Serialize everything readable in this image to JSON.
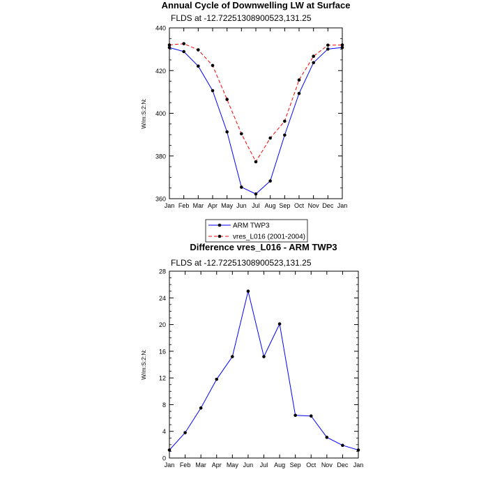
{
  "chart_data": [
    {
      "type": "line",
      "title": "Annual Cycle of Downwelling LW at Surface",
      "subtitle": "FLDS at -12.72251308900523,131.25",
      "xlabel": "",
      "ylabel": "W/m:S:2:N:",
      "categories": [
        "Jan",
        "Feb",
        "Mar",
        "Apr",
        "May",
        "Jun",
        "Jul",
        "Aug",
        "Sep",
        "Oct",
        "Nov",
        "Dec",
        "Jan"
      ],
      "ylim": [
        360,
        440
      ],
      "yticks": [
        360,
        380,
        400,
        420,
        440
      ],
      "grid": false,
      "legend": "below",
      "series": [
        {
          "name": "ARM TWP3",
          "color": "#0000ff",
          "dash": "solid",
          "values": [
            430.8,
            428.9,
            422.1,
            410.6,
            391.3,
            365.4,
            362.2,
            368.3,
            389.8,
            409.3,
            423.7,
            430.1,
            430.8
          ]
        },
        {
          "name": "vres_L016 (2001-2004)",
          "color": "#ff0000",
          "dash": "dashed",
          "values": [
            432.0,
            432.6,
            429.7,
            422.4,
            406.5,
            390.4,
            377.3,
            388.4,
            396.3,
            415.6,
            426.7,
            431.9,
            432.0
          ]
        }
      ]
    },
    {
      "type": "line",
      "title": "Difference vres_L016 - ARM TWP3",
      "subtitle": "FLDS at -12.72251308900523,131.25",
      "xlabel": "",
      "ylabel": "W/m:S:2:N:",
      "categories": [
        "Jan",
        "Feb",
        "Mar",
        "Apr",
        "May",
        "Jun",
        "Jul",
        "Aug",
        "Sep",
        "Oct",
        "Nov",
        "Dec",
        "Jan"
      ],
      "ylim": [
        0,
        28
      ],
      "yticks": [
        0,
        4,
        8,
        12,
        16,
        20,
        24,
        28
      ],
      "grid": false,
      "series": [
        {
          "name": "",
          "color": "#0000ff",
          "dash": "solid",
          "values": [
            1.2,
            3.8,
            7.5,
            11.8,
            15.2,
            25.0,
            15.2,
            20.1,
            6.4,
            6.3,
            3.1,
            1.9,
            1.2
          ]
        }
      ]
    }
  ]
}
